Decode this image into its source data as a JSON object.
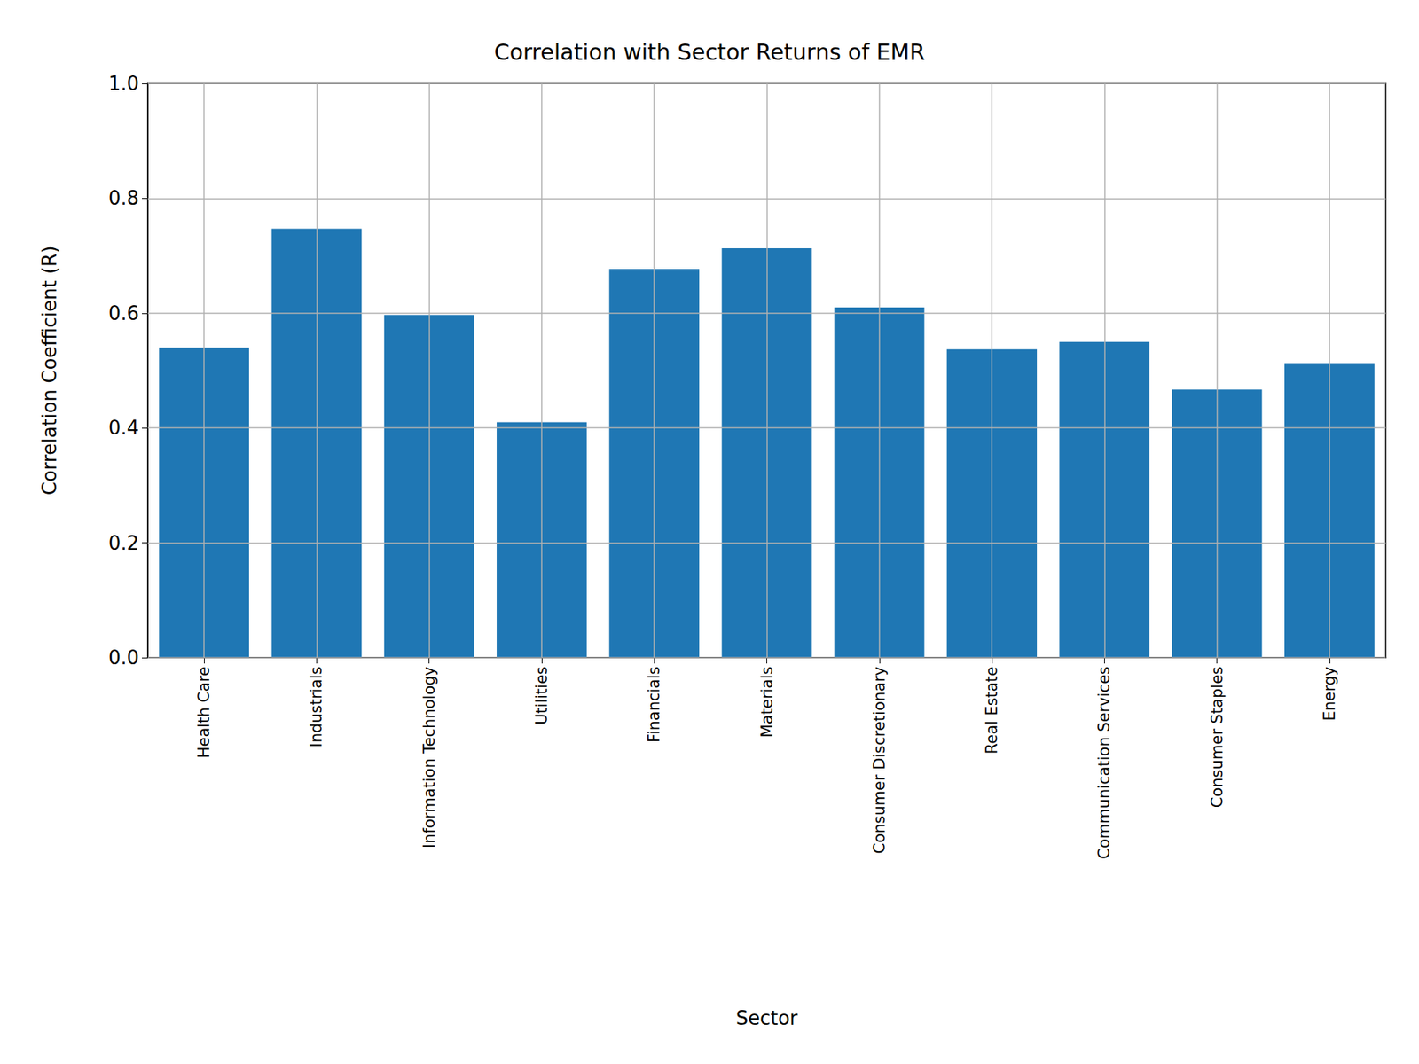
{
  "chart_data": {
    "type": "bar",
    "title": "Correlation with Sector Returns of EMR",
    "x_label": "Sector",
    "y_label": "Correlation Coefficient (R)",
    "categories": [
      "Health Care",
      "Industrials",
      "Information Technology",
      "Utilities",
      "Financials",
      "Materials",
      "Consumer Discretionary",
      "Real Estate",
      "Communication Services",
      "Consumer Staples",
      "Energy"
    ],
    "values": [
      0.54,
      0.747,
      0.597,
      0.41,
      0.677,
      0.713,
      0.61,
      0.537,
      0.55,
      0.467,
      0.513
    ],
    "color": "#1f77b4",
    "ylim": [
      0,
      1
    ],
    "yticks": [
      {
        "value": 0,
        "label": "0.0"
      },
      0.2,
      0.4,
      0.6,
      0.8,
      {
        "value": 1,
        "label": "1.0"
      }
    ],
    "grid": true
  }
}
